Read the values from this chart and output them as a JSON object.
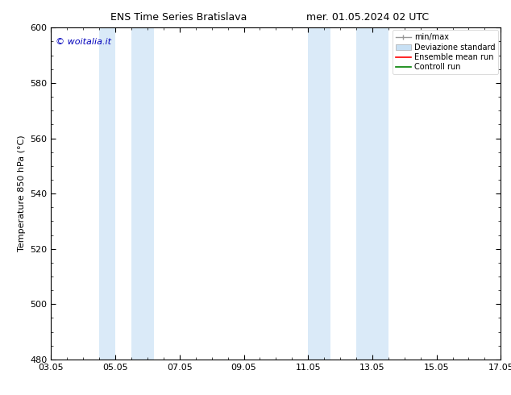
{
  "title_left": "ENS Time Series Bratislava",
  "title_right": "mer. 01.05.2024 02 UTC",
  "ylabel": "Temperature 850 hPa (°C)",
  "ylim": [
    480,
    600
  ],
  "yticks": [
    480,
    500,
    520,
    540,
    560,
    580,
    600
  ],
  "xticks": [
    "03.05",
    "05.05",
    "07.05",
    "09.05",
    "11.05",
    "13.05",
    "15.05",
    "17.05"
  ],
  "xtick_positions": [
    0,
    2,
    4,
    6,
    8,
    10,
    12,
    14
  ],
  "xlim": [
    0,
    14
  ],
  "shaded_bands": [
    {
      "x_start": 1.5,
      "x_end": 2.5,
      "color": "#daeaf8"
    },
    {
      "x_start": 2.5,
      "x_end": 3.0,
      "color": "#daeaf8"
    },
    {
      "x_start": 8.0,
      "x_end": 9.0,
      "color": "#daeaf8"
    },
    {
      "x_start": 9.5,
      "x_end": 10.5,
      "color": "#daeaf8"
    }
  ],
  "shaded_bands_v2": [
    {
      "x_start": 1.7,
      "x_end": 3.3,
      "color": "#daeaf8"
    },
    {
      "x_start": 8.0,
      "x_end": 10.5,
      "color": "#daeaf8"
    }
  ],
  "watermark_text": "© woitalia.it",
  "watermark_color": "#0000bb",
  "bg_color": "#ffffff",
  "spine_color": "#000000",
  "title_fontsize": 9,
  "label_fontsize": 8,
  "tick_fontsize": 8,
  "legend_fontsize": 7
}
